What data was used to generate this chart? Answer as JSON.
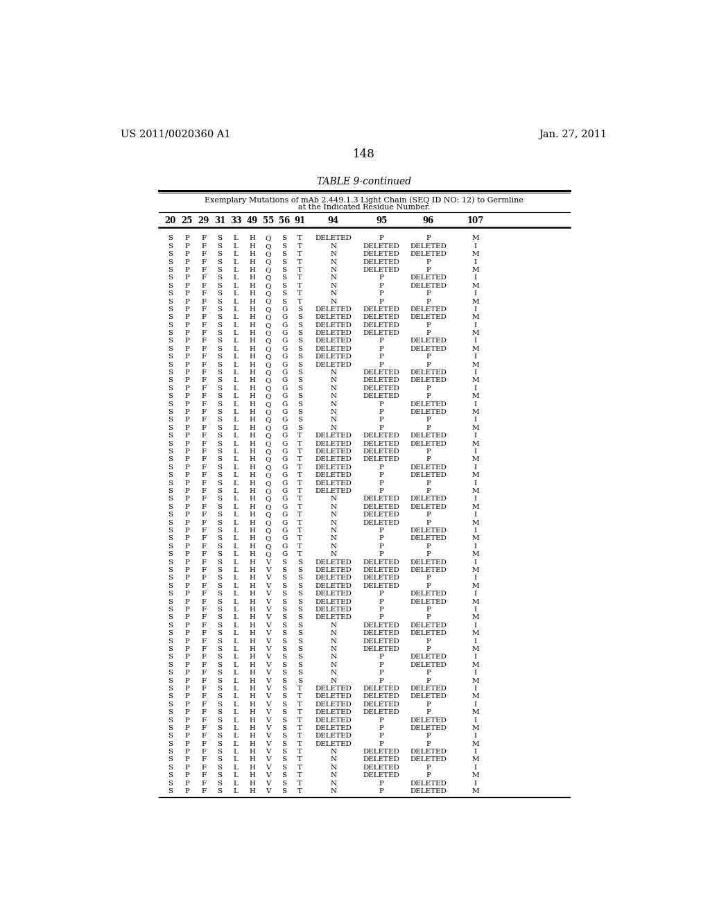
{
  "header_left": "US 2011/0020360 A1",
  "header_right": "Jan. 27, 2011",
  "page_number": "148",
  "table_title": "TABLE 9-continued",
  "table_subtitle_line1": "Exemplary Mutations of mAb 2.449.1.3 Light Chain (SEQ ID NO: 12) to Germline",
  "table_subtitle_line2": "at the Indicated Residue Number.",
  "col_headers": [
    "20",
    "25",
    "29",
    "31",
    "33",
    "49",
    "55",
    "56",
    "91",
    "94",
    "95",
    "96",
    "107"
  ],
  "rows": [
    [
      "S",
      "P",
      "F",
      "S",
      "L",
      "H",
      "Q",
      "S",
      "T",
      "DELETED",
      "P",
      "P",
      "M"
    ],
    [
      "S",
      "P",
      "F",
      "S",
      "L",
      "H",
      "Q",
      "S",
      "T",
      "N",
      "DELETED",
      "DELETED",
      "I"
    ],
    [
      "S",
      "P",
      "F",
      "S",
      "L",
      "H",
      "Q",
      "S",
      "T",
      "N",
      "DELETED",
      "DELETED",
      "M"
    ],
    [
      "S",
      "P",
      "F",
      "S",
      "L",
      "H",
      "Q",
      "S",
      "T",
      "N",
      "DELETED",
      "P",
      "I"
    ],
    [
      "S",
      "P",
      "F",
      "S",
      "L",
      "H",
      "Q",
      "S",
      "T",
      "N",
      "DELETED",
      "P",
      "M"
    ],
    [
      "S",
      "P",
      "F",
      "S",
      "L",
      "H",
      "Q",
      "S",
      "T",
      "N",
      "P",
      "DELETED",
      "I"
    ],
    [
      "S",
      "P",
      "F",
      "S",
      "L",
      "H",
      "Q",
      "S",
      "T",
      "N",
      "P",
      "DELETED",
      "M"
    ],
    [
      "S",
      "P",
      "F",
      "S",
      "L",
      "H",
      "Q",
      "S",
      "T",
      "N",
      "P",
      "P",
      "I"
    ],
    [
      "S",
      "P",
      "F",
      "S",
      "L",
      "H",
      "Q",
      "S",
      "T",
      "N",
      "P",
      "P",
      "M"
    ],
    [
      "S",
      "P",
      "F",
      "S",
      "L",
      "H",
      "Q",
      "G",
      "S",
      "DELETED",
      "DELETED",
      "DELETED",
      "I"
    ],
    [
      "S",
      "P",
      "F",
      "S",
      "L",
      "H",
      "Q",
      "G",
      "S",
      "DELETED",
      "DELETED",
      "DELETED",
      "M"
    ],
    [
      "S",
      "P",
      "F",
      "S",
      "L",
      "H",
      "Q",
      "G",
      "S",
      "DELETED",
      "DELETED",
      "P",
      "I"
    ],
    [
      "S",
      "P",
      "F",
      "S",
      "L",
      "H",
      "Q",
      "G",
      "S",
      "DELETED",
      "DELETED",
      "P",
      "M"
    ],
    [
      "S",
      "P",
      "F",
      "S",
      "L",
      "H",
      "Q",
      "G",
      "S",
      "DELETED",
      "P",
      "DELETED",
      "I"
    ],
    [
      "S",
      "P",
      "F",
      "S",
      "L",
      "H",
      "Q",
      "G",
      "S",
      "DELETED",
      "P",
      "DELETED",
      "M"
    ],
    [
      "S",
      "P",
      "F",
      "S",
      "L",
      "H",
      "Q",
      "G",
      "S",
      "DELETED",
      "P",
      "P",
      "I"
    ],
    [
      "S",
      "P",
      "F",
      "S",
      "L",
      "H",
      "Q",
      "G",
      "S",
      "DELETED",
      "P",
      "P",
      "M"
    ],
    [
      "S",
      "P",
      "F",
      "S",
      "L",
      "H",
      "Q",
      "G",
      "S",
      "N",
      "DELETED",
      "DELETED",
      "I"
    ],
    [
      "S",
      "P",
      "F",
      "S",
      "L",
      "H",
      "Q",
      "G",
      "S",
      "N",
      "DELETED",
      "DELETED",
      "M"
    ],
    [
      "S",
      "P",
      "F",
      "S",
      "L",
      "H",
      "Q",
      "G",
      "S",
      "N",
      "DELETED",
      "P",
      "I"
    ],
    [
      "S",
      "P",
      "F",
      "S",
      "L",
      "H",
      "Q",
      "G",
      "S",
      "N",
      "DELETED",
      "P",
      "M"
    ],
    [
      "S",
      "P",
      "F",
      "S",
      "L",
      "H",
      "Q",
      "G",
      "S",
      "N",
      "P",
      "DELETED",
      "I"
    ],
    [
      "S",
      "P",
      "F",
      "S",
      "L",
      "H",
      "Q",
      "G",
      "S",
      "N",
      "P",
      "DELETED",
      "M"
    ],
    [
      "S",
      "P",
      "F",
      "S",
      "L",
      "H",
      "Q",
      "G",
      "S",
      "N",
      "P",
      "P",
      "I"
    ],
    [
      "S",
      "P",
      "F",
      "S",
      "L",
      "H",
      "Q",
      "G",
      "S",
      "N",
      "P",
      "P",
      "M"
    ],
    [
      "S",
      "P",
      "F",
      "S",
      "L",
      "H",
      "Q",
      "G",
      "T",
      "DELETED",
      "DELETED",
      "DELETED",
      "I"
    ],
    [
      "S",
      "P",
      "F",
      "S",
      "L",
      "H",
      "Q",
      "G",
      "T",
      "DELETED",
      "DELETED",
      "DELETED",
      "M"
    ],
    [
      "S",
      "P",
      "F",
      "S",
      "L",
      "H",
      "Q",
      "G",
      "T",
      "DELETED",
      "DELETED",
      "P",
      "I"
    ],
    [
      "S",
      "P",
      "F",
      "S",
      "L",
      "H",
      "Q",
      "G",
      "T",
      "DELETED",
      "DELETED",
      "P",
      "M"
    ],
    [
      "S",
      "P",
      "F",
      "S",
      "L",
      "H",
      "Q",
      "G",
      "T",
      "DELETED",
      "P",
      "DELETED",
      "I"
    ],
    [
      "S",
      "P",
      "F",
      "S",
      "L",
      "H",
      "Q",
      "G",
      "T",
      "DELETED",
      "P",
      "DELETED",
      "M"
    ],
    [
      "S",
      "P",
      "F",
      "S",
      "L",
      "H",
      "Q",
      "G",
      "T",
      "DELETED",
      "P",
      "P",
      "I"
    ],
    [
      "S",
      "P",
      "F",
      "S",
      "L",
      "H",
      "Q",
      "G",
      "T",
      "DELETED",
      "P",
      "P",
      "M"
    ],
    [
      "S",
      "P",
      "F",
      "S",
      "L",
      "H",
      "Q",
      "G",
      "T",
      "N",
      "DELETED",
      "DELETED",
      "I"
    ],
    [
      "S",
      "P",
      "F",
      "S",
      "L",
      "H",
      "Q",
      "G",
      "T",
      "N",
      "DELETED",
      "DELETED",
      "M"
    ],
    [
      "S",
      "P",
      "F",
      "S",
      "L",
      "H",
      "Q",
      "G",
      "T",
      "N",
      "DELETED",
      "P",
      "I"
    ],
    [
      "S",
      "P",
      "F",
      "S",
      "L",
      "H",
      "Q",
      "G",
      "T",
      "N",
      "DELETED",
      "P",
      "M"
    ],
    [
      "S",
      "P",
      "F",
      "S",
      "L",
      "H",
      "Q",
      "G",
      "T",
      "N",
      "P",
      "DELETED",
      "I"
    ],
    [
      "S",
      "P",
      "F",
      "S",
      "L",
      "H",
      "Q",
      "G",
      "T",
      "N",
      "P",
      "DELETED",
      "M"
    ],
    [
      "S",
      "P",
      "F",
      "S",
      "L",
      "H",
      "Q",
      "G",
      "T",
      "N",
      "P",
      "P",
      "I"
    ],
    [
      "S",
      "P",
      "F",
      "S",
      "L",
      "H",
      "Q",
      "G",
      "T",
      "N",
      "P",
      "P",
      "M"
    ],
    [
      "S",
      "P",
      "F",
      "S",
      "L",
      "H",
      "V",
      "S",
      "S",
      "DELETED",
      "DELETED",
      "DELETED",
      "I"
    ],
    [
      "S",
      "P",
      "F",
      "S",
      "L",
      "H",
      "V",
      "S",
      "S",
      "DELETED",
      "DELETED",
      "DELETED",
      "M"
    ],
    [
      "S",
      "P",
      "F",
      "S",
      "L",
      "H",
      "V",
      "S",
      "S",
      "DELETED",
      "DELETED",
      "P",
      "I"
    ],
    [
      "S",
      "P",
      "F",
      "S",
      "L",
      "H",
      "V",
      "S",
      "S",
      "DELETED",
      "DELETED",
      "P",
      "M"
    ],
    [
      "S",
      "P",
      "F",
      "S",
      "L",
      "H",
      "V",
      "S",
      "S",
      "DELETED",
      "P",
      "DELETED",
      "I"
    ],
    [
      "S",
      "P",
      "F",
      "S",
      "L",
      "H",
      "V",
      "S",
      "S",
      "DELETED",
      "P",
      "DELETED",
      "M"
    ],
    [
      "S",
      "P",
      "F",
      "S",
      "L",
      "H",
      "V",
      "S",
      "S",
      "DELETED",
      "P",
      "P",
      "I"
    ],
    [
      "S",
      "P",
      "F",
      "S",
      "L",
      "H",
      "V",
      "S",
      "S",
      "DELETED",
      "P",
      "P",
      "M"
    ],
    [
      "S",
      "P",
      "F",
      "S",
      "L",
      "H",
      "V",
      "S",
      "S",
      "N",
      "DELETED",
      "DELETED",
      "I"
    ],
    [
      "S",
      "P",
      "F",
      "S",
      "L",
      "H",
      "V",
      "S",
      "S",
      "N",
      "DELETED",
      "DELETED",
      "M"
    ],
    [
      "S",
      "P",
      "F",
      "S",
      "L",
      "H",
      "V",
      "S",
      "S",
      "N",
      "DELETED",
      "P",
      "I"
    ],
    [
      "S",
      "P",
      "F",
      "S",
      "L",
      "H",
      "V",
      "S",
      "S",
      "N",
      "DELETED",
      "P",
      "M"
    ],
    [
      "S",
      "P",
      "F",
      "S",
      "L",
      "H",
      "V",
      "S",
      "S",
      "N",
      "P",
      "DELETED",
      "I"
    ],
    [
      "S",
      "P",
      "F",
      "S",
      "L",
      "H",
      "V",
      "S",
      "S",
      "N",
      "P",
      "DELETED",
      "M"
    ],
    [
      "S",
      "P",
      "F",
      "S",
      "L",
      "H",
      "V",
      "S",
      "S",
      "N",
      "P",
      "P",
      "I"
    ],
    [
      "S",
      "P",
      "F",
      "S",
      "L",
      "H",
      "V",
      "S",
      "S",
      "N",
      "P",
      "P",
      "M"
    ],
    [
      "S",
      "P",
      "F",
      "S",
      "L",
      "H",
      "V",
      "S",
      "T",
      "DELETED",
      "DELETED",
      "DELETED",
      "I"
    ],
    [
      "S",
      "P",
      "F",
      "S",
      "L",
      "H",
      "V",
      "S",
      "T",
      "DELETED",
      "DELETED",
      "DELETED",
      "M"
    ],
    [
      "S",
      "P",
      "F",
      "S",
      "L",
      "H",
      "V",
      "S",
      "T",
      "DELETED",
      "DELETED",
      "P",
      "I"
    ],
    [
      "S",
      "P",
      "F",
      "S",
      "L",
      "H",
      "V",
      "S",
      "T",
      "DELETED",
      "DELETED",
      "P",
      "M"
    ],
    [
      "S",
      "P",
      "F",
      "S",
      "L",
      "H",
      "V",
      "S",
      "T",
      "DELETED",
      "P",
      "DELETED",
      "I"
    ],
    [
      "S",
      "P",
      "F",
      "S",
      "L",
      "H",
      "V",
      "S",
      "T",
      "DELETED",
      "P",
      "DELETED",
      "M"
    ],
    [
      "S",
      "P",
      "F",
      "S",
      "L",
      "H",
      "V",
      "S",
      "T",
      "DELETED",
      "P",
      "P",
      "I"
    ],
    [
      "S",
      "P",
      "F",
      "S",
      "L",
      "H",
      "V",
      "S",
      "T",
      "DELETED",
      "P",
      "P",
      "M"
    ],
    [
      "S",
      "P",
      "F",
      "S",
      "L",
      "H",
      "V",
      "S",
      "T",
      "N",
      "DELETED",
      "DELETED",
      "I"
    ],
    [
      "S",
      "P",
      "F",
      "S",
      "L",
      "H",
      "V",
      "S",
      "T",
      "N",
      "DELETED",
      "DELETED",
      "M"
    ],
    [
      "S",
      "P",
      "F",
      "S",
      "L",
      "H",
      "V",
      "S",
      "T",
      "N",
      "DELETED",
      "P",
      "I"
    ],
    [
      "S",
      "P",
      "F",
      "S",
      "L",
      "H",
      "V",
      "S",
      "T",
      "N",
      "DELETED",
      "P",
      "M"
    ],
    [
      "S",
      "P",
      "F",
      "S",
      "L",
      "H",
      "V",
      "S",
      "T",
      "N",
      "P",
      "DELETED",
      "I"
    ],
    [
      "S",
      "P",
      "F",
      "S",
      "L",
      "H",
      "V",
      "S",
      "T",
      "N",
      "P",
      "DELETED",
      "M"
    ]
  ]
}
